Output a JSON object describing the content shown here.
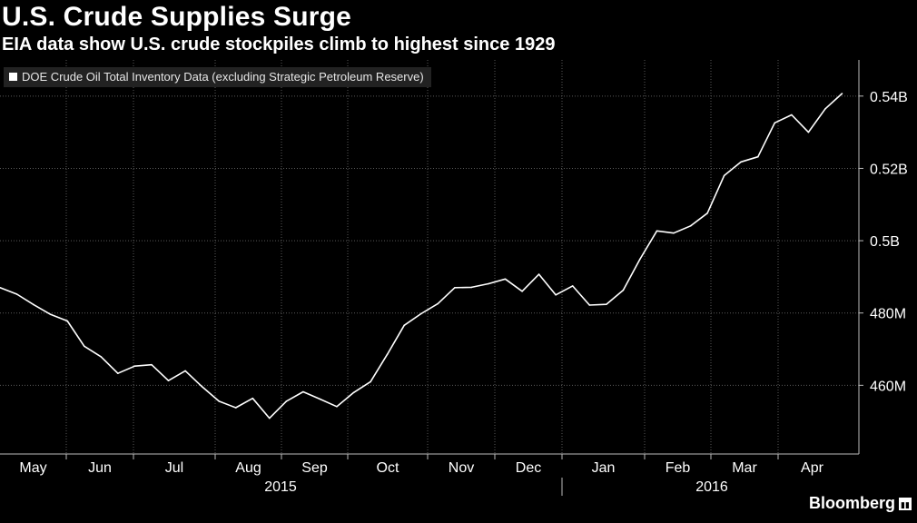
{
  "chart_data": {
    "type": "line",
    "title": "U.S. Crude Supplies Surge",
    "subtitle": "EIA data show U.S. crude stockpiles climb to highest since 1929",
    "legend": "DOE Crude Oil Total Inventory Data (excluding Strategic Petroleum Reserve)",
    "ylim": [
      441,
      550
    ],
    "y_ticks": [
      460,
      480,
      500,
      520,
      540
    ],
    "y_tick_labels": [
      "460M",
      "480M",
      "0.5B",
      "0.52B",
      "0.54B"
    ],
    "months": [
      "May",
      "Jun",
      "Jul",
      "Aug",
      "Sep",
      "Oct",
      "Nov",
      "Dec",
      "Jan",
      "Feb",
      "Mar",
      "Apr"
    ],
    "years": [
      "2015",
      "2016"
    ],
    "series": [
      {
        "name": "DOE Crude Oil Total Inventory Data (excluding Strategic Petroleum Reserve)",
        "x_week_index": [
          0,
          1,
          2,
          3,
          4,
          5,
          6,
          7,
          8,
          9,
          10,
          11,
          12,
          13,
          14,
          15,
          16,
          17,
          18,
          19,
          20,
          21,
          22,
          23,
          24,
          25,
          26,
          27,
          28,
          29,
          30,
          31,
          32,
          33,
          34,
          35,
          36,
          37,
          38,
          39,
          40,
          41,
          42,
          43,
          44,
          45,
          46,
          47,
          48,
          49,
          50
        ],
        "values": [
          487.0,
          485.2,
          482.3,
          479.6,
          477.8,
          470.8,
          467.9,
          463.3,
          465.3,
          465.7,
          461.3,
          464.0,
          459.6,
          455.6,
          453.8,
          456.4,
          450.9,
          455.6,
          458.2,
          456.2,
          454.1,
          458.0,
          461.0,
          468.6,
          476.6,
          479.8,
          482.6,
          487.0,
          487.1,
          488.1,
          489.4,
          486.0,
          490.7,
          485.0,
          487.5,
          482.2,
          482.4,
          486.3,
          494.9,
          502.7,
          502.1,
          504.1,
          507.6,
          518.0,
          521.8,
          523.2,
          532.6,
          534.8,
          530.0,
          536.5,
          540.7
        ]
      }
    ]
  },
  "brand": {
    "name": "Bloomberg",
    "icon": "bars-icon"
  },
  "colors": {
    "background": "#000000",
    "line": "#ffffff",
    "grid": "#5a5a5a"
  }
}
